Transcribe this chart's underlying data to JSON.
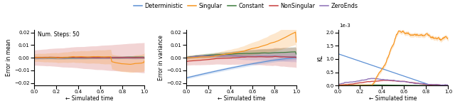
{
  "title_text": "Num. Steps: 50",
  "legend_labels": [
    "Deterministic",
    "Singular",
    "Constant",
    "NonSingular",
    "ZeroEnds"
  ],
  "colors": {
    "Deterministic": "#5b8fd4",
    "Singular": "#f7941d",
    "Constant": "#3a7a3a",
    "NonSingular": "#c83c3c",
    "ZeroEnds": "#8b6db5"
  },
  "alpha_fill": 0.22,
  "xlabel": "← Simulated time",
  "ylim_mean": [
    -0.022,
    0.022
  ],
  "ylim_var": [
    -0.022,
    0.022
  ],
  "ylim_kl": [
    0,
    0.0021
  ],
  "kl_scale_label": "1e-3"
}
